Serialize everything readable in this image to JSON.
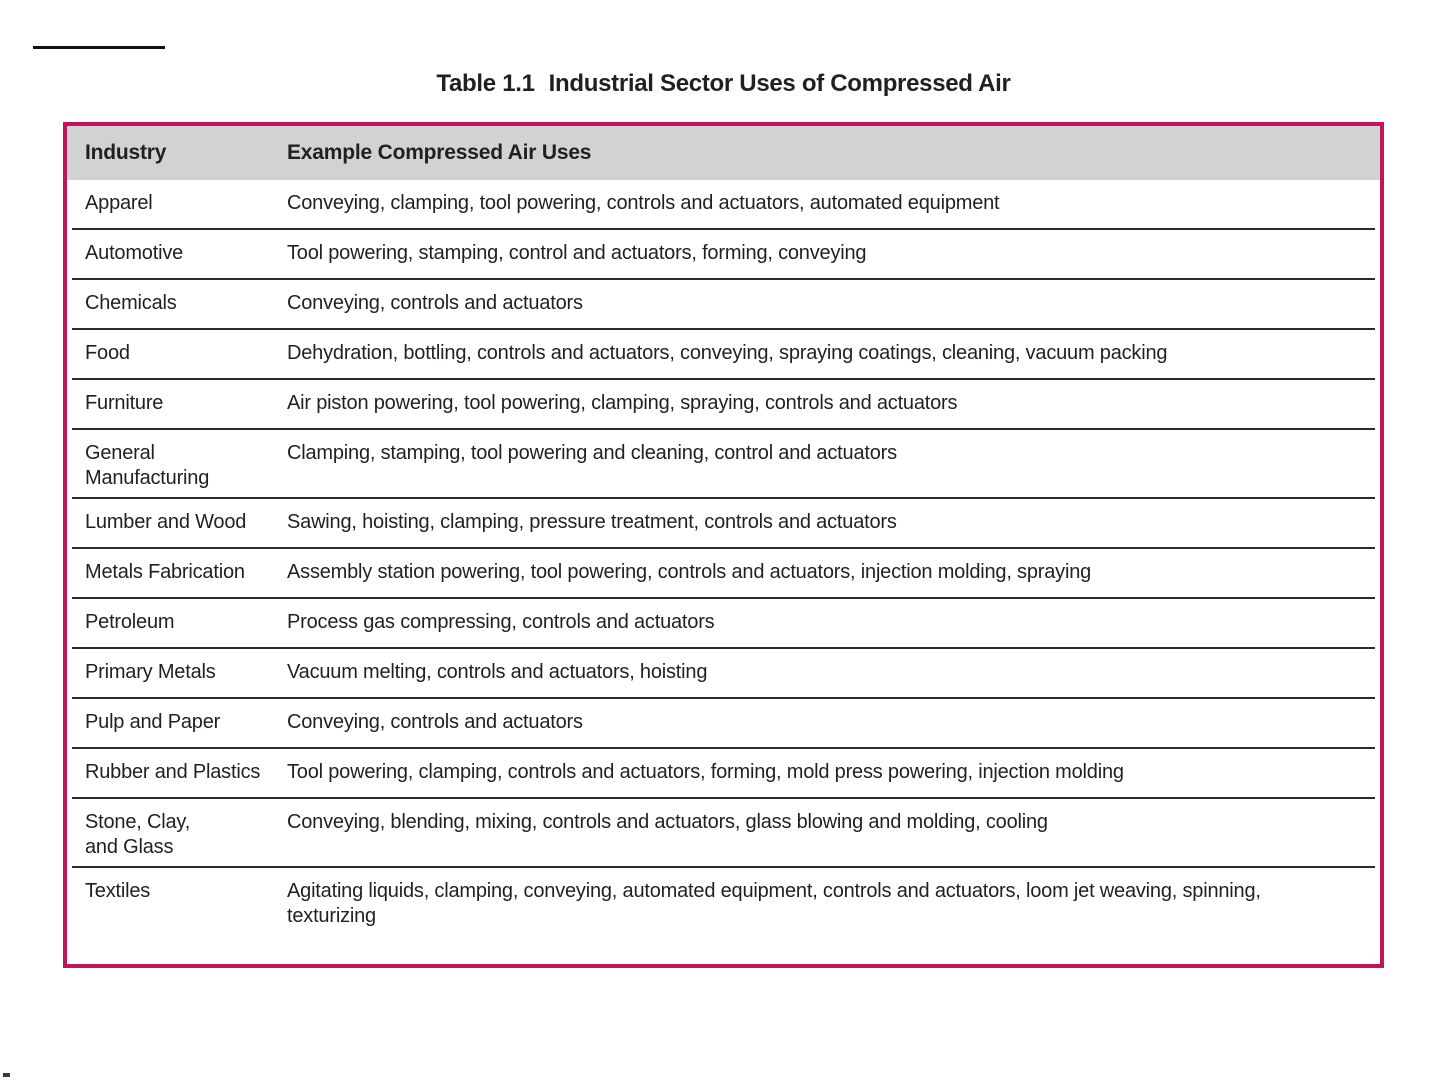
{
  "page": {
    "caption_label": "Table 1.1",
    "caption_text": "Industrial Sector Uses of Compressed Air"
  },
  "table": {
    "headers": [
      "Industry",
      "Example Compressed Air Uses"
    ],
    "rows": [
      {
        "industry": "Apparel",
        "uses": "Conveying, clamping, tool powering, controls and actuators, automated equipment"
      },
      {
        "industry": "Automotive",
        "uses": "Tool powering, stamping, control and actuators, forming, conveying"
      },
      {
        "industry": "Chemicals",
        "uses": "Conveying, controls and actuators"
      },
      {
        "industry": "Food",
        "uses": "Dehydration, bottling, controls and actuators, conveying, spraying coatings, cleaning, vacuum packing"
      },
      {
        "industry": "Furniture",
        "uses": "Air piston powering, tool powering, clamping, spraying, controls and actuators"
      },
      {
        "industry": "General\nManufacturing",
        "uses": "Clamping, stamping, tool powering and cleaning, control and actuators"
      },
      {
        "industry": "Lumber and Wood",
        "uses": "Sawing, hoisting, clamping, pressure treatment, controls and actuators"
      },
      {
        "industry": "Metals Fabrication",
        "uses": "Assembly station powering, tool powering, controls and actuators, injection molding, spraying"
      },
      {
        "industry": "Petroleum",
        "uses": "Process gas compressing, controls and actuators"
      },
      {
        "industry": "Primary Metals",
        "uses": "Vacuum melting, controls and actuators, hoisting"
      },
      {
        "industry": "Pulp and Paper",
        "uses": "Conveying, controls and actuators"
      },
      {
        "industry": "Rubber and Plastics",
        "uses": "Tool powering, clamping, controls and actuators, forming, mold press powering, injection molding"
      },
      {
        "industry": "Stone, Clay,\nand Glass",
        "uses": "Conveying, blending, mixing, controls and actuators, glass blowing and molding, cooling"
      },
      {
        "industry": "Textiles",
        "uses": "Agitating liquids, clamping, conveying, automated equipment, controls and actuators, loom jet weaving, spinning, texturizing"
      }
    ]
  },
  "colors": {
    "table_border": "#c2145e",
    "header_bg": "#d2d2d2",
    "row_divider": "#2b2b2b",
    "text": "#231f20"
  }
}
